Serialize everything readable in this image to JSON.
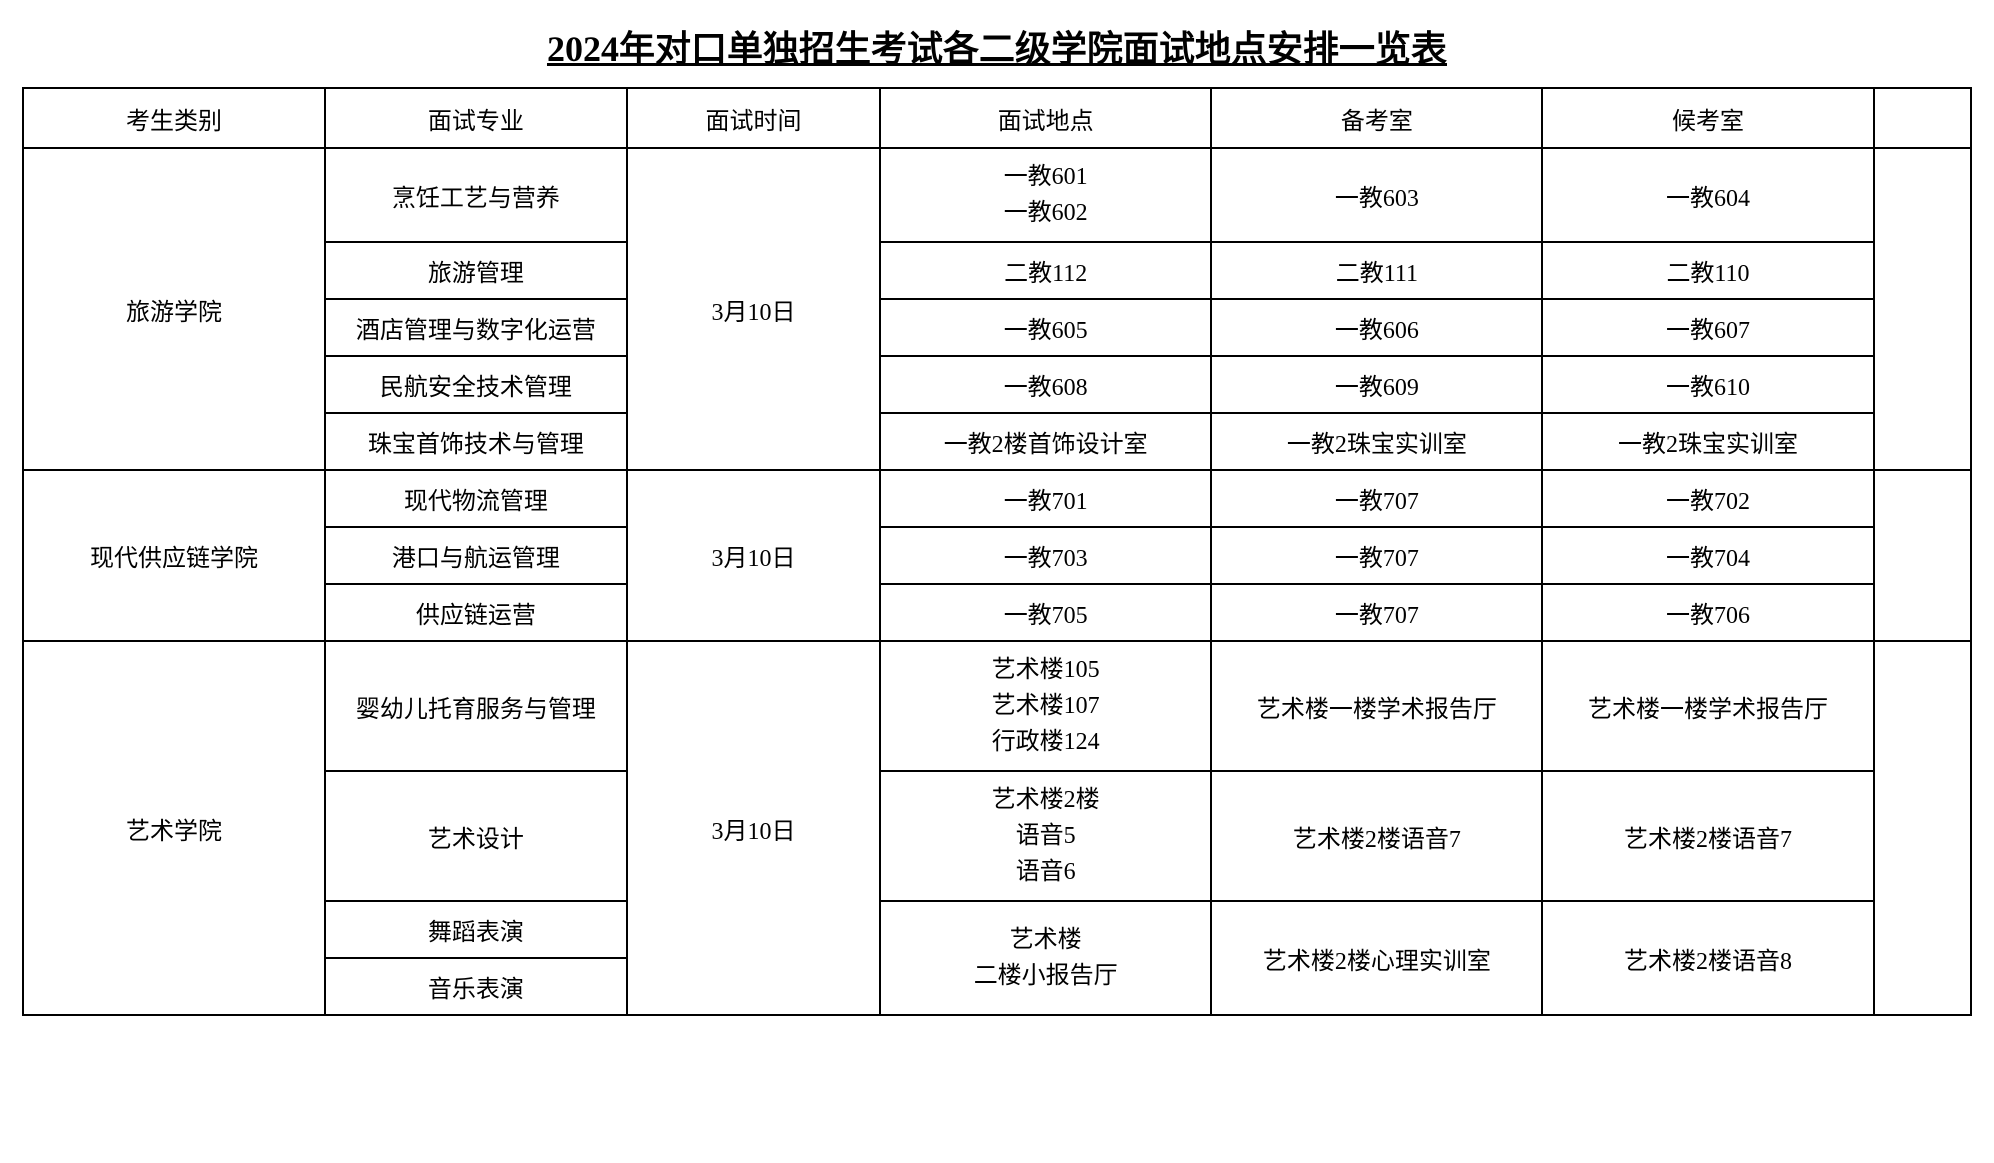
{
  "title": "2024年对口单独招生考试各二级学院面试地点安排一览表",
  "headers": {
    "category": "考生类别",
    "major": "面试专业",
    "time": "面试时间",
    "location": "面试地点",
    "prep": "备考室",
    "wait": "候考室"
  },
  "colleges": {
    "tourism": {
      "name": "旅游学院",
      "time": "3月10日",
      "rows": [
        {
          "major": "烹饪工艺与营养",
          "location": "一教601\n一教602",
          "prep": "一教603",
          "wait": "一教604"
        },
        {
          "major": "旅游管理",
          "location": "二教112",
          "prep": "二教111",
          "wait": "二教110"
        },
        {
          "major": "酒店管理与数字化运营",
          "location": "一教605",
          "prep": "一教606",
          "wait": "一教607"
        },
        {
          "major": "民航安全技术管理",
          "location": "一教608",
          "prep": "一教609",
          "wait": "一教610"
        },
        {
          "major": "珠宝首饰技术与管理",
          "location": "一教2楼首饰设计室",
          "prep": "一教2珠宝实训室",
          "wait": "一教2珠宝实训室"
        }
      ]
    },
    "supply": {
      "name": "现代供应链学院",
      "time": "3月10日",
      "rows": [
        {
          "major": "现代物流管理",
          "location": "一教701",
          "prep": "一教707",
          "wait": "一教702"
        },
        {
          "major": "港口与航运管理",
          "location": "一教703",
          "prep": "一教707",
          "wait": "一教704"
        },
        {
          "major": "供应链运营",
          "location": "一教705",
          "prep": "一教707",
          "wait": "一教706"
        }
      ]
    },
    "art": {
      "name": "艺术学院",
      "time": "3月10日",
      "rows": [
        {
          "major": "婴幼儿托育服务与管理",
          "location": "艺术楼105\n艺术楼107\n行政楼124",
          "prep": "艺术楼一楼学术报告厅",
          "wait": "艺术楼一楼学术报告厅"
        },
        {
          "major": "艺术设计",
          "location": "艺术楼2楼\n语音5\n语音6",
          "prep": "艺术楼2楼语音7",
          "wait": "艺术楼2楼语音7"
        },
        {
          "major": "舞蹈表演",
          "location_merged": "艺术楼\n二楼小报告厅",
          "prep_merged": "艺术楼2楼心理实训室",
          "wait_merged": "艺术楼2楼语音8"
        },
        {
          "major": "音乐表演"
        }
      ]
    }
  },
  "styling": {
    "background_color": "#ffffff",
    "text_color": "#000000",
    "border_color": "#000000",
    "title_fontsize": 36,
    "cell_fontsize": 24,
    "font_family": "SimSun"
  }
}
